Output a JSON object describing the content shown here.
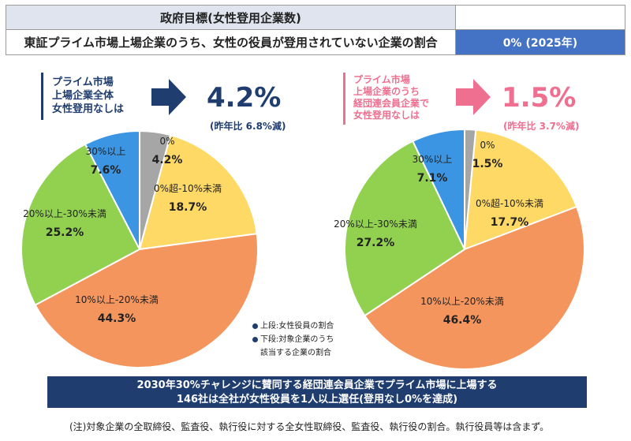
{
  "table": {
    "header_left": "政府目標(女性登用企業数)",
    "header_right": "",
    "row_left": "東証プライム市場上場企業のうち、女性の役員が登用されていない企業の割合",
    "row_right": "0%  (2025年)"
  },
  "left_heading": {
    "label": "プライム市場\n上場企業全体\n女性登用なしは",
    "value": "4.2%",
    "change": "(昨年比 6.8%減)",
    "color": "#1f3d6e"
  },
  "right_heading": {
    "label": "プライム市場\n上場企業のうち\n経団連会員企業で\n女性登用なしは",
    "value": "1.5%",
    "change": "(昨年比 3.7%減)",
    "color": "#ee6f8f"
  },
  "legend": {
    "line1": "上段:女性役員の割合",
    "line2": "下段:対象企業のうち",
    "line3": "該当する企業の割合"
  },
  "banner": {
    "line1": "2030年30%チャレンジに賛同する経団連会員企業でプライム市場に上場する",
    "line2": "146社は全社が女性役員を1人以上選任(登用なし0%を達成)"
  },
  "note": "(注)対象企業の全取締役、監査役、執行役に対する全女性取締役、監査役、執行役の割合。執行役員等は含まず。",
  "chart_data": [
    {
      "type": "pie",
      "slices": [
        {
          "label": "0%",
          "value": 4.2,
          "display": "4.2%",
          "color": "#a6a6a6"
        },
        {
          "label": "0%超-10%未満",
          "value": 18.7,
          "display": "18.7%",
          "color": "#ffd966"
        },
        {
          "label": "10%以上-20%未満",
          "value": 44.3,
          "display": "44.3%",
          "color": "#f4955e"
        },
        {
          "label": "20%以上-30%未満",
          "value": 25.2,
          "display": "25.2%",
          "color": "#92d050"
        },
        {
          "label": "30%以上",
          "value": 7.6,
          "display": "7.6%",
          "color": "#3c95e3"
        }
      ]
    },
    {
      "type": "pie",
      "slices": [
        {
          "label": "0%",
          "value": 1.5,
          "display": "1.5%",
          "color": "#a6a6a6"
        },
        {
          "label": "0%超-10%未満",
          "value": 17.7,
          "display": "17.7%",
          "color": "#ffd966"
        },
        {
          "label": "10%以上-20%未満",
          "value": 46.4,
          "display": "46.4%",
          "color": "#f4955e"
        },
        {
          "label": "20%以上-30%未満",
          "value": 27.2,
          "display": "27.2%",
          "color": "#92d050"
        },
        {
          "label": "30%以上",
          "value": 7.1,
          "display": "7.1%",
          "color": "#3c95e3"
        }
      ]
    }
  ]
}
